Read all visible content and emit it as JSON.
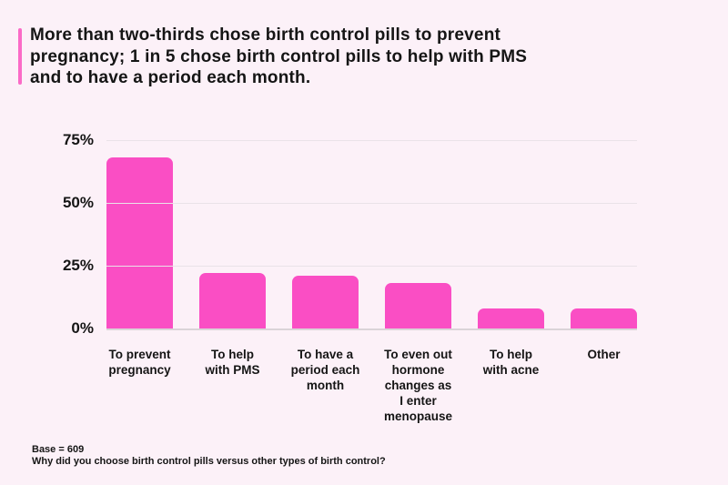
{
  "title": {
    "lines": [
      "More than two-thirds chose birth control pills to prevent",
      "pregnancy; 1 in 5 chose birth control pills to help with PMS",
      "and to have a period each month."
    ],
    "text": "More than two-thirds chose birth control pills to prevent pregnancy; 1 in 5 chose birth control pills to help with PMS and to have a period each month."
  },
  "footer": {
    "base_note": "Base = 609",
    "question": "Why did you choose birth control pills versus other types of birth control?"
  },
  "colors": {
    "background": "#FCF1F8",
    "bar": "#FA4EC4",
    "accent_bar": "#FB6BC7",
    "gridline": "#EAE2E8",
    "axis_line": "#DAD4D8",
    "text": "#151515"
  },
  "chart_data": {
    "type": "bar",
    "title": "",
    "categories": [
      "To prevent pregnancy",
      "To help with PMS",
      "To have a period each month",
      "To even out hormone changes as I enter menopause",
      "To help with acne",
      "Other"
    ],
    "category_lines": [
      [
        "To prevent",
        "pregnancy"
      ],
      [
        "To help",
        "with PMS"
      ],
      [
        "To have a",
        "period each",
        "month"
      ],
      [
        "To even out",
        "hormone",
        "changes as",
        "I enter",
        "menopause"
      ],
      [
        "To help",
        "with acne"
      ],
      [
        "Other"
      ]
    ],
    "values": [
      68,
      22,
      21,
      18,
      8,
      8
    ],
    "value_unit": "%",
    "xlabel": "",
    "ylabel": "",
    "yticks": [
      0,
      25,
      50,
      75
    ],
    "ytick_labels": [
      "0%",
      "25%",
      "50%",
      "75%"
    ],
    "ylim": [
      0,
      75
    ],
    "grid": true,
    "legend": false
  }
}
